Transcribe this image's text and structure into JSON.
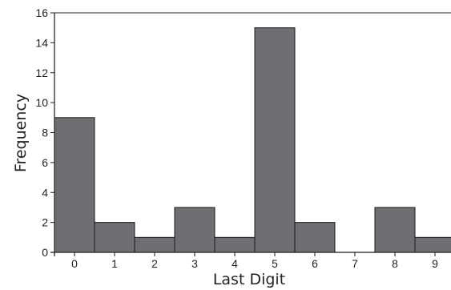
{
  "chart_data": {
    "type": "bar",
    "title": "",
    "xlabel": "Last Digit",
    "ylabel": "Frequency",
    "categories": [
      "0",
      "1",
      "2",
      "3",
      "4",
      "5",
      "6",
      "7",
      "8",
      "9"
    ],
    "values": [
      9,
      2,
      1,
      3,
      1,
      15,
      2,
      0,
      3,
      1
    ],
    "ylim": [
      0,
      16
    ],
    "yticks": [
      "0",
      "2",
      "4",
      "6",
      "8",
      "10",
      "12",
      "14",
      "16"
    ],
    "grid": false,
    "legend": "none",
    "colors": {
      "bar_fill": "#6f6f73",
      "bar_stroke": "#1a1a1a",
      "axis": "#1a1a1a",
      "text": "#222222"
    }
  }
}
